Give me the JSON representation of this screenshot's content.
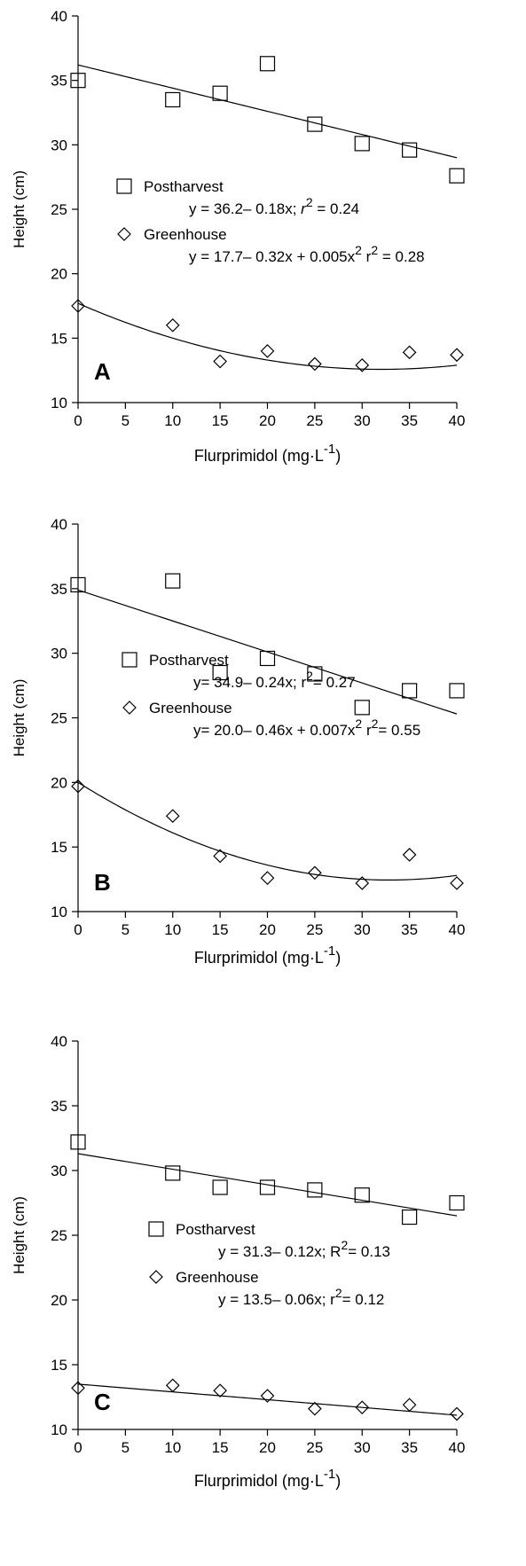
{
  "chart_data": [
    {
      "type": "scatter",
      "panel_label": "A",
      "xlabel": "Flurprimidol (mg·L",
      "xlabel_sup": "-1",
      "xlabel_close": ")",
      "ylabel": "Height (cm)",
      "xlim": [
        0,
        40
      ],
      "ylim": [
        10,
        40
      ],
      "xticks": [
        "0",
        "5",
        "10",
        "15",
        "20",
        "25",
        "30",
        "35",
        "40"
      ],
      "yticks": [
        "10",
        "15",
        "20",
        "25",
        "30",
        "35",
        "40"
      ],
      "series": [
        {
          "name": "Postharvest",
          "marker": "square",
          "x": [
            0,
            10,
            15,
            20,
            25,
            30,
            35,
            40
          ],
          "y": [
            35.0,
            33.5,
            34.0,
            36.3,
            31.6,
            30.1,
            29.6,
            27.6
          ],
          "fit": {
            "type": "linear",
            "coef": [
              36.2,
              -0.18
            ]
          },
          "equation_main": "y = 36.2– 0.18x; ",
          "equation_r": "r",
          "equation_sup": "2",
          "equation_tail": " = 0.24"
        },
        {
          "name": "Greenhouse",
          "marker": "diamond",
          "x": [
            0,
            10,
            15,
            20,
            25,
            30,
            35,
            40
          ],
          "y": [
            17.5,
            16.0,
            13.2,
            14.0,
            13.0,
            12.9,
            13.9,
            13.7
          ],
          "fit": {
            "type": "quadratic",
            "coef": [
              17.7,
              -0.32,
              0.005
            ]
          },
          "equation_main": "y = 17.7– 0.32x + 0.005x",
          "equation_sup": "2",
          "equation_r": " r",
          "equation_sup2": "2",
          "equation_tail": " = 0.28"
        }
      ]
    },
    {
      "type": "scatter",
      "panel_label": "B",
      "xlabel": "Flurprimidol (mg·L",
      "xlabel_sup": "-1",
      "xlabel_close": ")",
      "ylabel": "Height (cm)",
      "xlim": [
        0,
        40
      ],
      "ylim": [
        10,
        40
      ],
      "xticks": [
        "0",
        "5",
        "10",
        "15",
        "20",
        "25",
        "30",
        "35",
        "40"
      ],
      "yticks": [
        "10",
        "15",
        "20",
        "25",
        "30",
        "35",
        "40"
      ],
      "series": [
        {
          "name": "Postharvest",
          "marker": "square",
          "x": [
            0,
            10,
            15,
            20,
            25,
            30,
            35,
            40
          ],
          "y": [
            35.3,
            35.6,
            28.5,
            29.6,
            28.4,
            25.8,
            27.1,
            27.1
          ],
          "fit": {
            "type": "linear",
            "coef": [
              34.9,
              -0.24
            ]
          },
          "equation_main": "y= 34.9– 0.24x; r",
          "equation_sup": "2",
          "equation_tail": "= 0.27"
        },
        {
          "name": "Greenhouse",
          "marker": "diamond",
          "x": [
            0,
            10,
            15,
            20,
            25,
            30,
            35,
            40
          ],
          "y": [
            19.7,
            17.4,
            14.3,
            12.6,
            13.0,
            12.2,
            14.4,
            12.2
          ],
          "fit": {
            "type": "quadratic",
            "coef": [
              20.0,
              -0.46,
              0.007
            ]
          },
          "equation_main": "y= 20.0– 0.46x + 0.007x",
          "equation_sup": "2",
          "equation_r": " r",
          "equation_sup2": "2",
          "equation_tail": "= 0.55"
        }
      ]
    },
    {
      "type": "scatter",
      "panel_label": "C",
      "xlabel": "Flurprimidol (mg·L",
      "xlabel_sup": "-1",
      "xlabel_close": ")",
      "ylabel": "Height (cm)",
      "xlim": [
        0,
        40
      ],
      "ylim": [
        10,
        40
      ],
      "xticks": [
        "0",
        "5",
        "10",
        "15",
        "20",
        "25",
        "30",
        "35",
        "40"
      ],
      "yticks": [
        "10",
        "15",
        "20",
        "25",
        "30",
        "35",
        "40"
      ],
      "series": [
        {
          "name": "Postharvest",
          "marker": "square",
          "x": [
            0,
            10,
            15,
            20,
            25,
            30,
            35,
            40
          ],
          "y": [
            32.2,
            29.8,
            28.7,
            28.7,
            28.5,
            28.1,
            26.4,
            27.5
          ],
          "fit": {
            "type": "linear",
            "coef": [
              31.3,
              -0.12
            ]
          },
          "equation_main": "y = 31.3– 0.12x; R",
          "equation_sup": "2",
          "equation_tail": "= 0.13"
        },
        {
          "name": "Greenhouse",
          "marker": "diamond",
          "x": [
            0,
            10,
            15,
            20,
            25,
            30,
            35,
            40
          ],
          "y": [
            13.2,
            13.4,
            13.0,
            12.6,
            11.6,
            11.7,
            11.9,
            11.2
          ],
          "fit": {
            "type": "linear",
            "coef": [
              13.5,
              -0.06
            ]
          },
          "equation_main": "y = 13.5– 0.06x; r",
          "equation_sup": "2",
          "equation_tail": "= 0.12"
        }
      ]
    }
  ]
}
